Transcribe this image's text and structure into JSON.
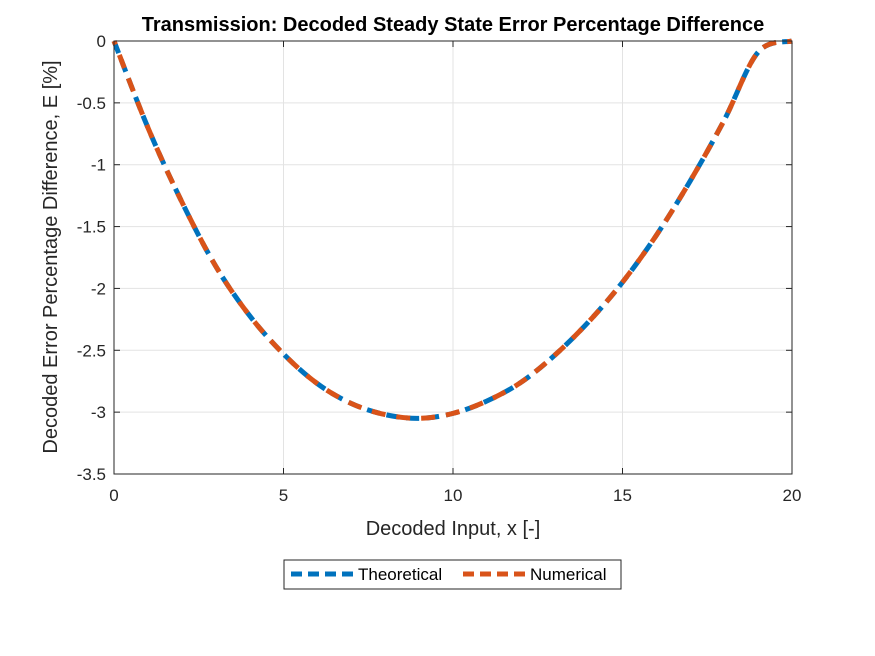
{
  "chart_data": {
    "type": "line",
    "title": "Transmission: Decoded Steady State Error Percentage Difference",
    "xlabel": "Decoded Input, x [-]",
    "ylabel": "Decoded Error Percentage Difference, E [%]",
    "xlim": [
      0,
      20
    ],
    "ylim": [
      -3.5,
      0
    ],
    "xticks": [
      0,
      5,
      10,
      15,
      20
    ],
    "yticks": [
      0,
      -0.5,
      -1,
      -1.5,
      -2,
      -2.5,
      -3,
      -3.5
    ],
    "xtick_labels": [
      "0",
      "5",
      "10",
      "15",
      "20"
    ],
    "ytick_labels": [
      "0",
      "-0.5",
      "-1",
      "-1.5",
      "-2",
      "-2.5",
      "-3",
      "-3.5"
    ],
    "grid": true,
    "legend_position": "bottom-outside",
    "series": [
      {
        "name": "Theoretical",
        "color": "#0072BD",
        "x": [
          0,
          1,
          2,
          3,
          4,
          5,
          6,
          7,
          8,
          9,
          10,
          11,
          12,
          13,
          14,
          15,
          16,
          17,
          18,
          19,
          20
        ],
        "values": [
          0,
          -0.7,
          -1.3,
          -1.82,
          -2.22,
          -2.53,
          -2.77,
          -2.93,
          -3.02,
          -3.05,
          -3.01,
          -2.91,
          -2.76,
          -2.54,
          -2.27,
          -1.95,
          -1.57,
          -1.13,
          -0.64,
          -0.09,
          0
        ]
      },
      {
        "name": "Numerical",
        "color": "#D95319",
        "x": [
          0,
          1,
          2,
          3,
          4,
          5,
          6,
          7,
          8,
          9,
          10,
          11,
          12,
          13,
          14,
          15,
          16,
          17,
          18,
          19,
          20
        ],
        "values": [
          0,
          -0.7,
          -1.3,
          -1.82,
          -2.22,
          -2.53,
          -2.77,
          -2.93,
          -3.02,
          -3.05,
          -3.01,
          -2.91,
          -2.76,
          -2.54,
          -2.27,
          -1.95,
          -1.57,
          -1.13,
          -0.64,
          -0.09,
          0
        ]
      }
    ]
  }
}
